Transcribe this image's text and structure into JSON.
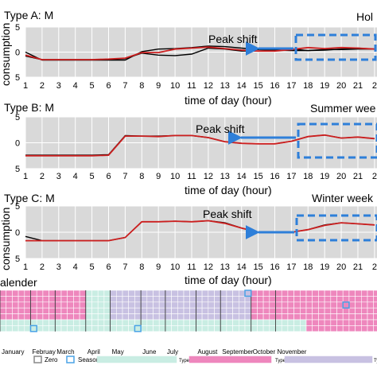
{
  "chart_data": [
    {
      "type": "line",
      "title": "Type A: M",
      "subtitle": "Hol",
      "xlabel": "time of day (hour)",
      "ylabel": "consumption",
      "annotation": "Peak shift",
      "ylim": [
        -5,
        5
      ],
      "yticks": [
        5,
        0,
        5
      ],
      "x": [
        1,
        2,
        3,
        4,
        5,
        6,
        7,
        8,
        9,
        10,
        11,
        12,
        13,
        14,
        15,
        16,
        17,
        18,
        19,
        20,
        21,
        22
      ],
      "xticks": [
        1,
        2,
        3,
        4,
        5,
        6,
        7,
        8,
        9,
        10,
        11,
        12,
        13,
        14,
        15,
        16,
        17,
        18,
        19,
        20,
        21,
        22
      ],
      "xtick_labels": [
        "1",
        "2",
        "3",
        "4",
        "5",
        "6",
        "7",
        "8",
        "9",
        "10",
        "11",
        "12",
        "13",
        "14",
        "15",
        "16",
        "17",
        "18",
        "19",
        "20",
        "21",
        "2"
      ],
      "series": [
        {
          "color": "#000000",
          "values": [
            0.0,
            -1.6,
            -1.6,
            -1.6,
            -1.6,
            -1.6,
            -1.6,
            0.1,
            0.6,
            0.7,
            0.9,
            1.2,
            1.1,
            0.8,
            0.5,
            0.4,
            0.3,
            0.3,
            0.4,
            0.6,
            0.8,
            0.6
          ]
        },
        {
          "color": "#000000",
          "values": [
            -0.8,
            -1.5,
            -1.5,
            -1.5,
            -1.5,
            -1.5,
            -1.3,
            -0.2,
            -0.6,
            -0.7,
            -0.4,
            0.8,
            0.6,
            0.2,
            0.2,
            0.4,
            0.6,
            0.3,
            0.5,
            0.5,
            0.6,
            0.6
          ]
        },
        {
          "color": "#cc1f1f",
          "values": [
            -0.6,
            -1.5,
            -1.5,
            -1.5,
            -1.5,
            -1.4,
            -1.2,
            -0.1,
            -0.1,
            0.6,
            0.8,
            1.0,
            0.7,
            0.4,
            0.2,
            0.2,
            0.5,
            0.9,
            0.7,
            0.9,
            0.8,
            0.6
          ]
        }
      ],
      "arrow_color": "#2e7fd9"
    },
    {
      "type": "line",
      "title": "Type B: M",
      "subtitle": "Summer wee",
      "xlabel": "time of day (hour)",
      "ylabel": "",
      "annotation": "Peak shift",
      "ylim": [
        -5,
        5
      ],
      "yticks": [
        5,
        0,
        5
      ],
      "x": [
        1,
        2,
        3,
        4,
        5,
        6,
        7,
        8,
        9,
        10,
        11,
        12,
        13,
        14,
        15,
        16,
        17,
        18,
        19,
        20,
        21,
        22
      ],
      "xticks": [
        1,
        2,
        3,
        4,
        5,
        6,
        7,
        8,
        9,
        10,
        11,
        12,
        13,
        14,
        15,
        16,
        17,
        18,
        19,
        20,
        21,
        22
      ],
      "xtick_labels": [
        "1",
        "2",
        "3",
        "4",
        "5",
        "6",
        "7",
        "8",
        "9",
        "10",
        "11",
        "12",
        "13",
        "14",
        "15",
        "16",
        "17",
        "18",
        "19",
        "20",
        "21",
        "2"
      ],
      "series": [
        {
          "color": "#000000",
          "values": [
            -2.4,
            -2.4,
            -2.4,
            -2.4,
            -2.4,
            -2.3,
            1.4,
            1.3,
            1.3,
            1.4,
            1.4,
            1.0,
            0.2,
            -0.1,
            -0.2,
            -0.2,
            0.3,
            1.2,
            1.5,
            0.9,
            1.1,
            0.8
          ]
        },
        {
          "color": "#cc1f1f",
          "values": [
            -2.5,
            -2.5,
            -2.5,
            -2.5,
            -2.5,
            -2.4,
            1.3,
            1.3,
            1.2,
            1.4,
            1.4,
            1.0,
            0.2,
            -0.1,
            -0.2,
            -0.2,
            0.3,
            1.2,
            1.5,
            0.9,
            1.1,
            0.8
          ]
        }
      ],
      "arrow_color": "#2e7fd9"
    },
    {
      "type": "line",
      "title": "Type C: M",
      "subtitle": "Winter week",
      "xlabel": "time of day (hour)",
      "ylabel": "consumption",
      "annotation": "Peak shift",
      "ylim": [
        -5,
        5
      ],
      "yticks": [
        5,
        0,
        5
      ],
      "x": [
        1,
        2,
        3,
        4,
        5,
        6,
        7,
        8,
        9,
        10,
        11,
        12,
        13,
        14,
        15,
        16,
        17,
        18,
        19,
        20,
        21,
        22
      ],
      "xticks": [
        1,
        2,
        3,
        4,
        5,
        6,
        7,
        8,
        9,
        10,
        11,
        12,
        13,
        14,
        15,
        16,
        17,
        18,
        19,
        20,
        21,
        22
      ],
      "xtick_labels": [
        "1",
        "2",
        "3",
        "4",
        "5",
        "6",
        "7",
        "8",
        "9",
        "10",
        "11",
        "12",
        "13",
        "14",
        "15",
        "16",
        "17",
        "18",
        "19",
        "20",
        "21",
        "2"
      ],
      "series": [
        {
          "color": "#000000",
          "values": [
            -0.8,
            -1.6,
            -1.6,
            -1.6,
            -1.6,
            -1.6,
            -1.0,
            2.0,
            2.0,
            2.1,
            2.0,
            2.2,
            1.8,
            0.8,
            0.0,
            0.0,
            0.0,
            0.5,
            1.4,
            1.8,
            1.6,
            1.4
          ]
        },
        {
          "color": "#cc1f1f",
          "values": [
            -1.6,
            -1.6,
            -1.6,
            -1.6,
            -1.6,
            -1.6,
            -1.0,
            2.0,
            2.0,
            2.1,
            2.0,
            2.2,
            1.7,
            0.8,
            0.0,
            0.0,
            0.0,
            0.5,
            1.3,
            1.8,
            1.6,
            1.4
          ]
        }
      ],
      "arrow_color": "#2e7fd9"
    },
    {
      "type": "heatmap",
      "title": "alender",
      "months": [
        "January",
        "Februay",
        "March",
        "April",
        "May",
        "June",
        "July",
        "August",
        "September",
        "October",
        "November"
      ],
      "legend": [
        {
          "label": "Zero",
          "color": "#ffffff",
          "border": "#888888"
        },
        {
          "label": "Season",
          "color": "#ffffff",
          "border": "#4aa3e6"
        },
        {
          "label": "Type A",
          "color": "#c9ede3"
        },
        {
          "label": "Type B",
          "color": "#ee87bd"
        },
        {
          "label": "Type C",
          "color": "#c8c1e2"
        }
      ],
      "rows": 7,
      "columns_per_month": [
        5,
        4,
        5,
        4,
        5,
        4,
        5,
        4,
        5,
        4,
        5
      ],
      "month_types": [
        "B",
        "B",
        "B",
        "A",
        "C",
        "C",
        "C",
        "C",
        "C",
        "B",
        "B"
      ],
      "colors": {
        "A": "#c9ede3",
        "B": "#ee87bd",
        "C": "#c8c1e2"
      }
    }
  ]
}
